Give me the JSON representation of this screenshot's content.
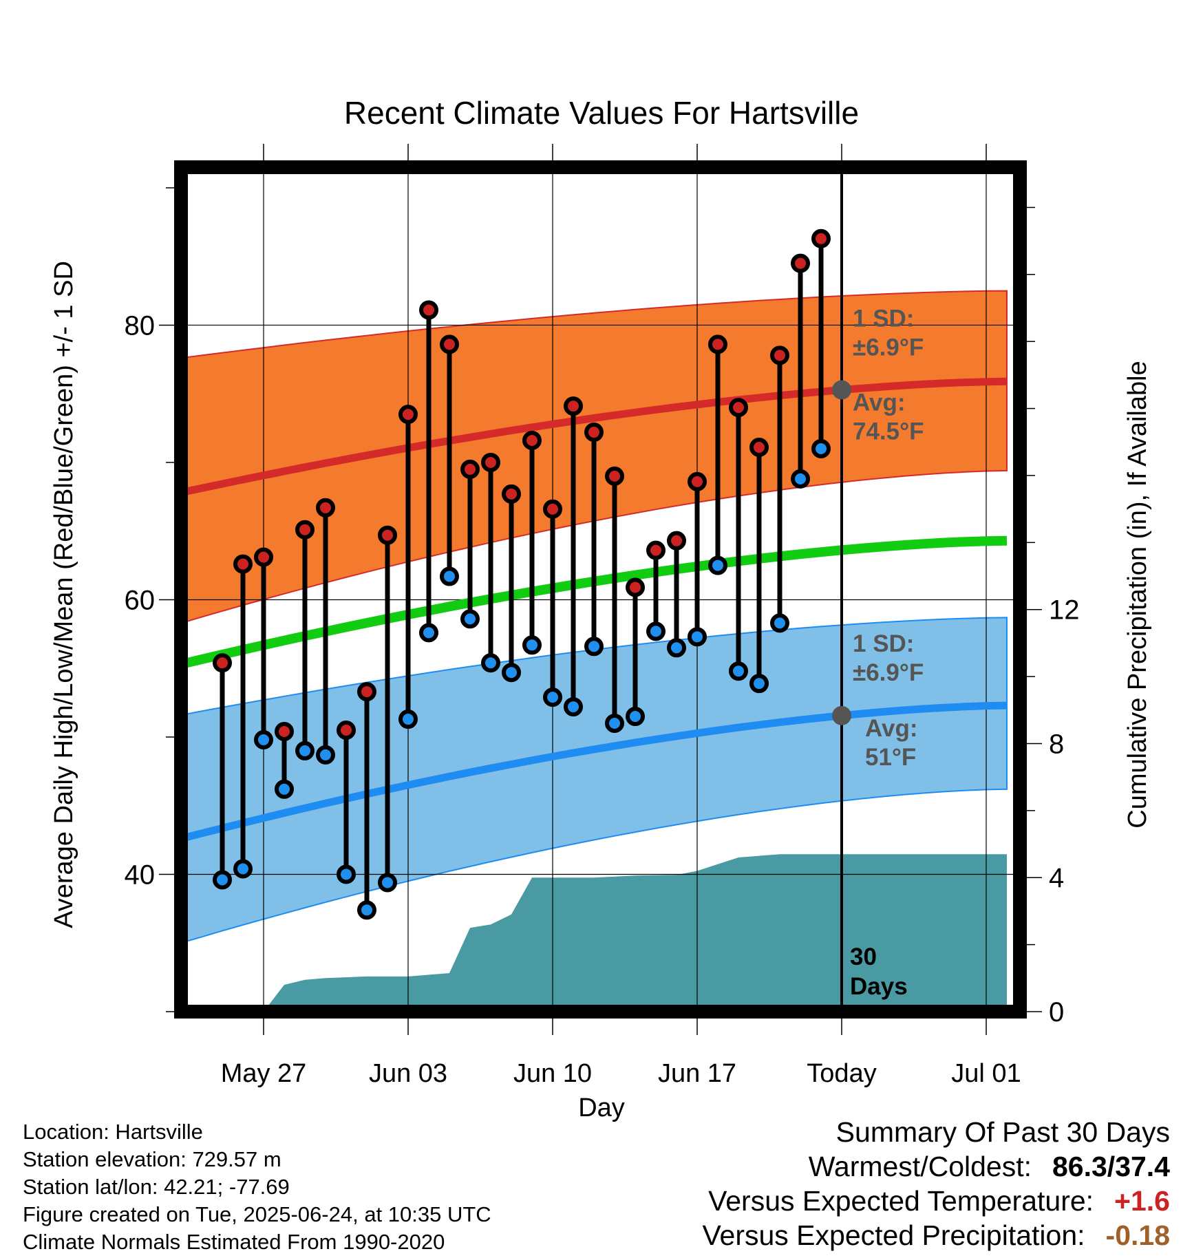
{
  "chart_data": {
    "type": "climate-range",
    "title": "Recent Climate Values For Hartsville",
    "xlabel": "Day",
    "ylabel_left": "Average Daily High/Low/Mean (Red/Blue/Green) +/- 1 SD",
    "ylabel_right": "Cumulative Precipitation (in), If Available",
    "x_tick_labels": [
      "May 27",
      "Jun 03",
      "Jun 10",
      "Jun 17",
      "Today",
      "Jul 01"
    ],
    "x_tick_dates": [
      "2025-05-27",
      "2025-06-03",
      "2025-06-10",
      "2025-06-17",
      "2025-06-24",
      "2025-07-01"
    ],
    "y_left_ticks": [
      40,
      60,
      80
    ],
    "y_left_range": [
      30,
      91.5
    ],
    "y_right_ticks": [
      0,
      4,
      8,
      12
    ],
    "y_right_range": [
      0,
      25.2
    ],
    "x_range": [
      "2025-05-23",
      "2025-07-02"
    ],
    "today": "2025-06-24",
    "today_label": "30 Days",
    "observations": {
      "dates": [
        "2025-05-25",
        "2025-05-26",
        "2025-05-27",
        "2025-05-28",
        "2025-05-29",
        "2025-05-30",
        "2025-05-31",
        "2025-06-01",
        "2025-06-02",
        "2025-06-03",
        "2025-06-04",
        "2025-06-05",
        "2025-06-06",
        "2025-06-07",
        "2025-06-08",
        "2025-06-09",
        "2025-06-10",
        "2025-06-11",
        "2025-06-12",
        "2025-06-13",
        "2025-06-14",
        "2025-06-15",
        "2025-06-16",
        "2025-06-17",
        "2025-06-18",
        "2025-06-19",
        "2025-06-20",
        "2025-06-21",
        "2025-06-22",
        "2025-06-23"
      ],
      "highs": [
        55.4,
        62.6,
        63.1,
        50.4,
        65.1,
        66.7,
        50.5,
        53.3,
        64.7,
        73.5,
        81.1,
        78.6,
        69.5,
        70.0,
        67.7,
        71.6,
        66.6,
        74.1,
        72.2,
        69.0,
        60.9,
        63.6,
        64.3,
        68.6,
        78.6,
        74.0,
        71.1,
        77.8,
        84.5,
        86.3
      ],
      "lows": [
        39.6,
        40.4,
        49.8,
        46.2,
        49.0,
        48.7,
        40.0,
        37.4,
        39.4,
        51.3,
        57.6,
        61.7,
        58.6,
        55.4,
        54.7,
        56.7,
        52.9,
        52.2,
        56.6,
        51.0,
        51.5,
        57.7,
        56.5,
        57.3,
        62.5,
        54.8,
        53.9,
        58.3,
        68.8,
        71.0
      ]
    },
    "normals": {
      "dates": [
        "2025-05-23",
        "2025-07-02"
      ],
      "avg_high": [
        67.8,
        75.9
      ],
      "high_upper": [
        77.6,
        82.5
      ],
      "high_lower": [
        58.3,
        69.4
      ],
      "avg_mean": [
        55.3,
        64.3
      ],
      "avg_low": [
        42.6,
        52.3
      ],
      "low_upper": [
        51.6,
        58.7
      ],
      "low_lower": [
        35.0,
        46.2
      ]
    },
    "precipitation": {
      "dates": [
        "2025-05-27",
        "2025-05-28",
        "2025-05-29",
        "2025-05-30",
        "2025-06-01",
        "2025-06-03",
        "2025-06-05",
        "2025-06-06",
        "2025-06-07",
        "2025-06-08",
        "2025-06-09",
        "2025-06-12",
        "2025-06-14",
        "2025-06-16",
        "2025-06-17",
        "2025-06-19",
        "2025-06-21",
        "2025-07-02"
      ],
      "cumulative": [
        0.0,
        0.8,
        0.95,
        1.0,
        1.05,
        1.05,
        1.15,
        2.5,
        2.6,
        2.9,
        4.0,
        4.0,
        4.06,
        4.08,
        4.2,
        4.6,
        4.7,
        4.7
      ]
    },
    "annotations": {
      "high_sd_label": "1 SD:",
      "high_sd_value": "±6.9°F",
      "high_avg_label": "Avg:",
      "high_avg_value": "74.5°F",
      "low_sd_label": "1 SD:",
      "low_sd_value": "±6.9°F",
      "low_avg_label": "Avg:",
      "low_avg_value": "51°F",
      "days_line1": "30",
      "days_line2": "Days"
    },
    "colors": {
      "high_band": "#f47a2e",
      "high_line": "#d42a2a",
      "mean_line": "#11cc11",
      "low_band": "#80c0e8",
      "low_line": "#1e8cf0",
      "precip": "#4a9aa4",
      "high_dot": "#cc2222",
      "low_dot": "#2090f0",
      "annotation": "#555555"
    }
  },
  "info": {
    "location": "Location: Hartsville",
    "elevation": "Station elevation: 729.57 m",
    "latlon": "Station lat/lon: 42.21; -77.69",
    "created": "Figure created on Tue, 2025-06-24, at 10:35 UTC",
    "normals": "Climate Normals Estimated From 1990-2020"
  },
  "summary": {
    "title": "Summary Of Past 30 Days",
    "warm_cold_label": "Warmest/Coldest:",
    "warm_cold_value": "86.3/37.4",
    "temp_label": "Versus Expected Temperature:",
    "temp_value": "+1.6",
    "temp_color": "#cc2222",
    "precip_label": "Versus Expected Precipitation:",
    "precip_value": "-0.18",
    "precip_color": "#a0602a"
  }
}
